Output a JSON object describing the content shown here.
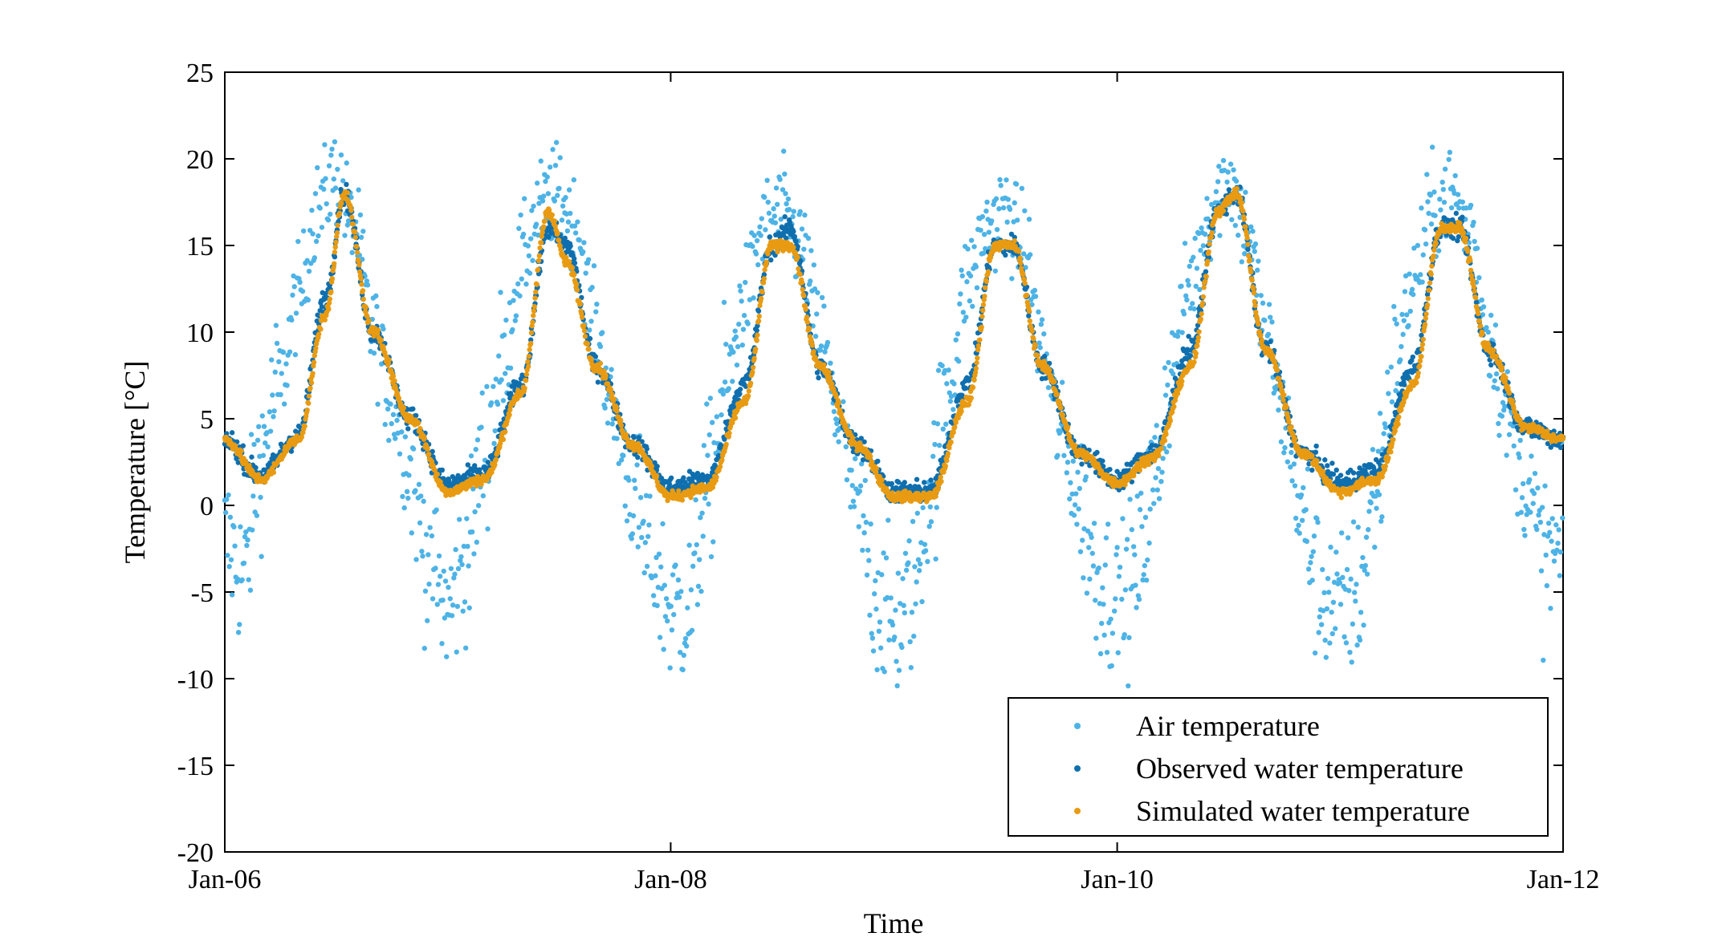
{
  "chart_data": {
    "type": "scatter",
    "title": "",
    "xlabel": "Time",
    "ylabel": "Temperature [°C]",
    "x_axis": {
      "range": [
        "2006-01-01",
        "2012-01-01"
      ],
      "ticks": [
        "2006-01-01",
        "2008-01-01",
        "2010-01-01",
        "2012-01-01"
      ],
      "tick_labels": [
        "Jan-06",
        "Jan-08",
        "Jan-10",
        "Jan-12"
      ]
    },
    "y_axis": {
      "range": [
        -20,
        25
      ],
      "ticks": [
        -20,
        -15,
        -10,
        -5,
        0,
        5,
        10,
        15,
        20,
        25
      ],
      "tick_labels": [
        "-20",
        "-15",
        "-10",
        "-5",
        "0",
        "5",
        "10",
        "15",
        "20",
        "25"
      ]
    },
    "grid": false,
    "legend": {
      "position": "bottom-right"
    },
    "series": [
      {
        "name": "Air temperature",
        "color": "#4DB3E6",
        "marker": "dot",
        "approx_monthly_mean": {
          "x": [
            "2006-01-01",
            "2006-02-01",
            "2006-03-01",
            "2006-04-01",
            "2006-05-01",
            "2006-06-01",
            "2006-07-01",
            "2006-08-01",
            "2006-09-01",
            "2006-10-01",
            "2006-11-01",
            "2006-12-01",
            "2007-01-01",
            "2007-02-01",
            "2007-03-01",
            "2007-04-01",
            "2007-05-01",
            "2007-06-01",
            "2007-07-01",
            "2007-08-01",
            "2007-09-01",
            "2007-10-01",
            "2007-11-01",
            "2007-12-01",
            "2008-01-01",
            "2008-02-01",
            "2008-03-01",
            "2008-04-01",
            "2008-05-01",
            "2008-06-01",
            "2008-07-01",
            "2008-08-01",
            "2008-09-01",
            "2008-10-01",
            "2008-11-01",
            "2008-12-01",
            "2009-01-01",
            "2009-02-01",
            "2009-03-01",
            "2009-04-01",
            "2009-05-01",
            "2009-06-01",
            "2009-07-01",
            "2009-08-01",
            "2009-09-01",
            "2009-10-01",
            "2009-11-01",
            "2009-12-01",
            "2010-01-01",
            "2010-02-01",
            "2010-03-01",
            "2010-04-01",
            "2010-05-01",
            "2010-06-01",
            "2010-07-01",
            "2010-08-01",
            "2010-09-01",
            "2010-10-01",
            "2010-11-01",
            "2010-12-01",
            "2011-01-01",
            "2011-02-01",
            "2011-03-01",
            "2011-04-01",
            "2011-05-01",
            "2011-06-01",
            "2011-07-01",
            "2011-08-01",
            "2011-09-01",
            "2011-10-01",
            "2011-11-01",
            "2011-12-01"
          ],
          "y": [
            -2,
            -4,
            3,
            7,
            12,
            17,
            19,
            16,
            10,
            6,
            2,
            -3,
            -6,
            -3,
            3,
            8,
            14,
            17,
            18,
            16,
            10,
            5,
            0,
            -3,
            -6,
            -6,
            1,
            7,
            12,
            16,
            17,
            15,
            10,
            5,
            0,
            -5,
            -7,
            -5,
            1,
            7,
            13,
            16,
            17,
            15,
            9,
            4,
            0,
            -4,
            -6,
            -4,
            1,
            8,
            13,
            17,
            19,
            16,
            10,
            5,
            -1,
            -5,
            -6,
            -5,
            1,
            8,
            13,
            17,
            18,
            16,
            10,
            5,
            1,
            -3
          ]
        }
      },
      {
        "name": "Observed water temperature",
        "color": "#0F6FAE",
        "marker": "dot",
        "approx_monthly_mean": {
          "x": [
            "2006-01-01",
            "2006-03-01",
            "2006-05-01",
            "2006-06-15",
            "2006-07-15",
            "2006-09-01",
            "2006-11-01",
            "2007-01-01",
            "2007-03-01",
            "2007-05-01",
            "2007-06-15",
            "2007-07-15",
            "2007-09-01",
            "2007-11-01",
            "2008-01-01",
            "2008-03-01",
            "2008-05-01",
            "2008-06-15",
            "2008-07-15",
            "2008-09-01",
            "2008-11-01",
            "2009-01-01",
            "2009-03-01",
            "2009-05-01",
            "2009-06-15",
            "2009-07-15",
            "2009-09-01",
            "2009-11-01",
            "2010-01-01",
            "2010-03-01",
            "2010-05-01",
            "2010-06-15",
            "2010-07-15",
            "2010-09-01",
            "2010-11-01",
            "2011-01-01",
            "2011-03-01",
            "2011-05-01",
            "2011-06-15",
            "2011-07-15",
            "2011-09-01",
            "2011-11-01",
            "2012-01-01"
          ],
          "y": [
            3.8,
            1.7,
            4,
            12,
            18,
            10,
            5,
            1.2,
            1.8,
            7,
            16,
            15,
            8,
            3.5,
            1,
            1.5,
            7,
            15,
            16,
            8,
            3.5,
            0.8,
            0.8,
            7,
            15,
            15,
            8,
            3,
            1.5,
            3,
            9,
            17,
            18,
            9,
            3,
            1.3,
            2,
            8,
            16,
            16,
            9,
            4.5,
            3.8
          ]
        }
      },
      {
        "name": "Simulated water temperature",
        "color": "#E89B12",
        "marker": "dot",
        "approx_monthly_mean": {
          "x": [
            "2006-01-01",
            "2006-03-01",
            "2006-05-01",
            "2006-06-15",
            "2006-07-15",
            "2006-09-01",
            "2006-11-01",
            "2007-01-01",
            "2007-03-01",
            "2007-05-01",
            "2007-06-15",
            "2007-07-15",
            "2007-09-01",
            "2007-11-01",
            "2008-01-01",
            "2008-03-01",
            "2008-05-01",
            "2008-06-15",
            "2008-07-15",
            "2008-09-01",
            "2008-11-01",
            "2009-01-01",
            "2009-03-01",
            "2009-05-01",
            "2009-06-15",
            "2009-07-15",
            "2009-09-01",
            "2009-11-01",
            "2010-01-01",
            "2010-03-01",
            "2010-05-01",
            "2010-06-15",
            "2010-07-15",
            "2010-09-01",
            "2010-11-01",
            "2011-01-01",
            "2011-03-01",
            "2011-05-01",
            "2011-06-15",
            "2011-07-15",
            "2011-09-01",
            "2011-11-01",
            "2012-01-01"
          ],
          "y": [
            3.8,
            1.5,
            3.8,
            11,
            18,
            10,
            5,
            0.8,
            1.5,
            6.5,
            17,
            14,
            8,
            3.5,
            0.5,
            1,
            6,
            15,
            15,
            8,
            3.5,
            0.5,
            0.5,
            6,
            15,
            15,
            8,
            3,
            1.3,
            2.8,
            8,
            17,
            18,
            9,
            3,
            0.8,
            1.5,
            7,
            16,
            16,
            9,
            4.5,
            3.8
          ]
        }
      }
    ]
  }
}
